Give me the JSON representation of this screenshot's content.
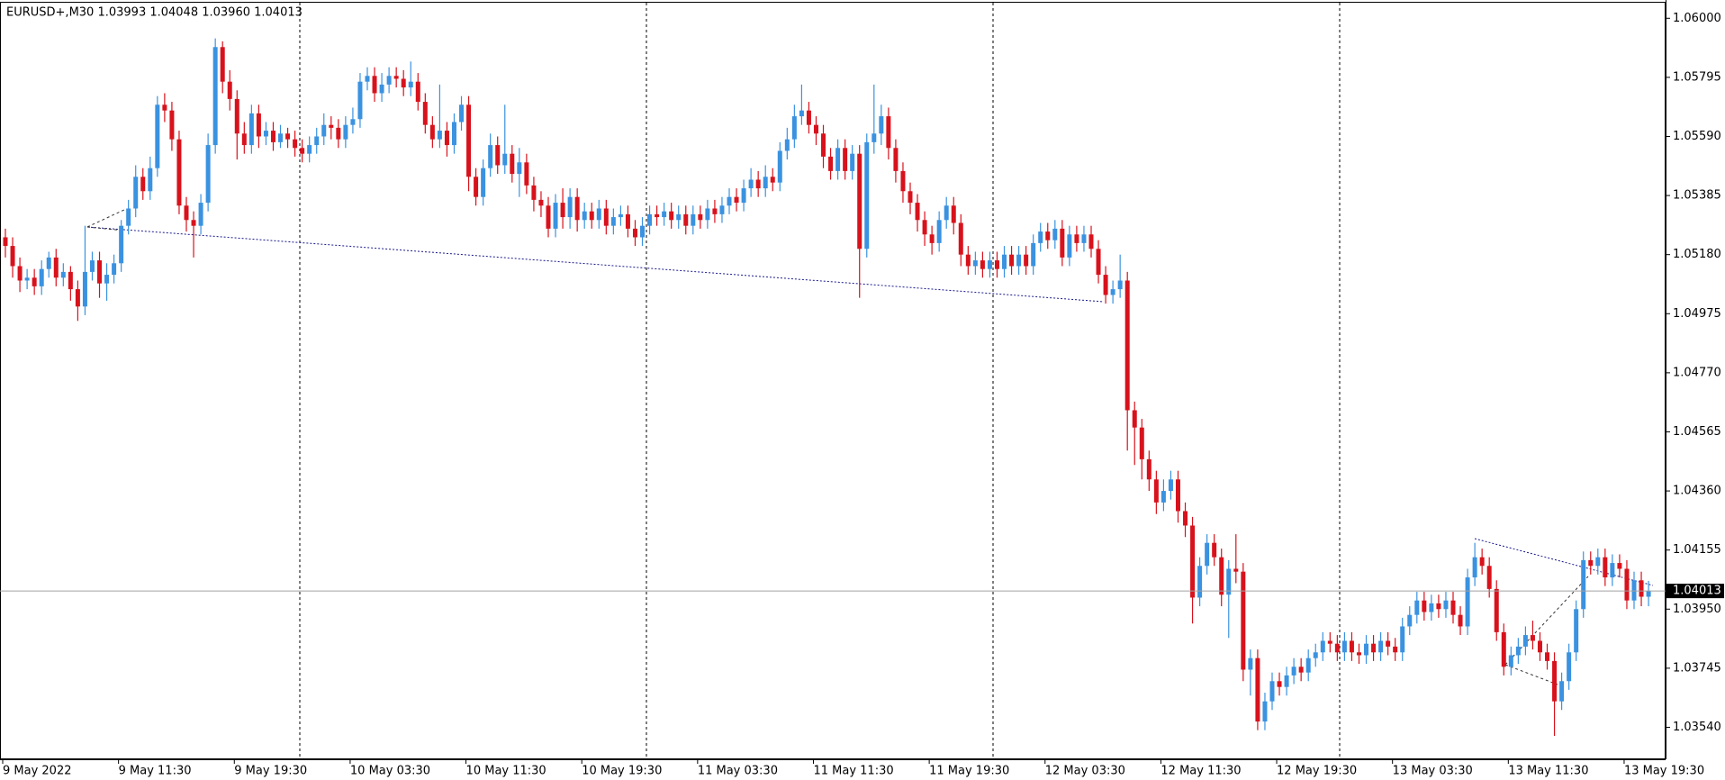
{
  "chart_data": {
    "type": "candlestick",
    "title": "EURUSD+,M30  1.03993 1.04048 1.03960 1.04013",
    "colors": {
      "up": "#3a92e0",
      "down": "#d8121c"
    },
    "ylim": [
      1.03429,
      1.06054
    ],
    "yticks": [
      {
        "value": 1.06,
        "label": "1.06000"
      },
      1.05795,
      {
        "value": 1.0559,
        "label": "1.05590"
      },
      1.05385,
      {
        "value": 1.0518,
        "label": "1.05180"
      },
      1.04975,
      {
        "value": 1.0477,
        "label": "1.04770"
      },
      1.04565,
      {
        "value": 1.0436,
        "label": "1.04360"
      },
      1.04155,
      {
        "value": 1.0395,
        "label": "1.03950"
      },
      1.03745,
      {
        "value": 1.0354,
        "label": "1.03540"
      }
    ],
    "categories": [
      "9 May 2022",
      null,
      null,
      null,
      null,
      null,
      null,
      null,
      null,
      null,
      null,
      null,
      null,
      null,
      null,
      null,
      "9 May 11:30",
      null,
      null,
      null,
      null,
      null,
      null,
      null,
      null,
      null,
      null,
      null,
      null,
      null,
      null,
      null,
      "9 May 19:30",
      null,
      null,
      null,
      null,
      null,
      null,
      null,
      null,
      null,
      null,
      null,
      null,
      null,
      null,
      null,
      "10 May 03:30",
      null,
      null,
      null,
      null,
      null,
      null,
      null,
      null,
      null,
      null,
      null,
      null,
      null,
      null,
      null,
      "10 May 11:30",
      null,
      null,
      null,
      null,
      null,
      null,
      null,
      null,
      null,
      null,
      null,
      null,
      null,
      null,
      null,
      "10 May 19:30",
      null,
      null,
      null,
      null,
      null,
      null,
      null,
      null,
      null,
      null,
      null,
      null,
      null,
      null,
      null,
      "11 May 03:30",
      null,
      null,
      null,
      null,
      null,
      null,
      null,
      null,
      null,
      null,
      null,
      null,
      null,
      null,
      null,
      "11 May 11:30",
      null,
      null,
      null,
      null,
      null,
      null,
      null,
      null,
      null,
      null,
      null,
      null,
      null,
      null,
      null,
      "11 May 19:30",
      null,
      null,
      null,
      null,
      null,
      null,
      null,
      null,
      null,
      null,
      null,
      null,
      null,
      null,
      null,
      "12 May 03:30",
      null,
      null,
      null,
      null,
      null,
      null,
      null,
      null,
      null,
      null,
      null,
      null,
      null,
      null,
      null,
      "12 May 11:30",
      null,
      null,
      null,
      null,
      null,
      null,
      null,
      null,
      null,
      null,
      null,
      null,
      null,
      null,
      null,
      "12 May 19:30",
      null,
      null,
      null,
      null,
      null,
      null,
      null,
      null,
      null,
      null,
      null,
      null,
      null,
      null,
      null,
      "13 May 03:30",
      null,
      null,
      null,
      null,
      null,
      null,
      null,
      null,
      null,
      null,
      null,
      null,
      null,
      null,
      null,
      "13 May 11:30",
      null,
      null,
      null,
      null,
      null,
      null,
      null,
      null,
      null,
      null,
      null,
      null,
      null,
      null,
      null,
      "13 May 19:30",
      null,
      null,
      null
    ],
    "open": [
      1.0524,
      1.0521,
      1.0514,
      1.0509,
      1.051,
      1.0507,
      1.0513,
      1.0517,
      1.051,
      1.0512,
      1.0506,
      1.05,
      1.0512,
      1.0516,
      1.0508,
      1.0511,
      1.0515,
      1.0528,
      1.0534,
      1.0545,
      1.054,
      1.0548,
      1.057,
      1.0568,
      1.0558,
      1.0535,
      1.053,
      1.0528,
      1.0536,
      1.0556,
      1.059,
      1.0578,
      1.0572,
      1.056,
      1.0556,
      1.0567,
      1.0559,
      1.0561,
      1.0557,
      1.056,
      1.0558,
      1.0555,
      1.0553,
      1.0556,
      1.0559,
      1.0563,
      1.0562,
      1.0558,
      1.0563,
      1.0565,
      1.0578,
      1.058,
      1.0574,
      1.0577,
      1.058,
      1.0579,
      1.0576,
      1.0578,
      1.0571,
      1.0563,
      1.0558,
      1.0561,
      1.0556,
      1.0564,
      1.057,
      1.0545,
      1.0538,
      1.0548,
      1.0556,
      1.0549,
      1.0553,
      1.0546,
      1.055,
      1.0542,
      1.0537,
      1.0535,
      1.0527,
      1.0536,
      1.0531,
      1.0538,
      1.053,
      1.0533,
      1.053,
      1.0534,
      1.0528,
      1.0531,
      1.0532,
      1.0527,
      1.0524,
      1.0528,
      1.0532,
      1.0531,
      1.0533,
      1.053,
      1.0532,
      1.0528,
      1.0532,
      1.053,
      1.0534,
      1.0532,
      1.0535,
      1.0538,
      1.0536,
      1.0541,
      1.0544,
      1.0541,
      1.0545,
      1.0543,
      1.0554,
      1.0558,
      1.0566,
      1.0568,
      1.0563,
      1.056,
      1.0552,
      1.0547,
      1.0555,
      1.0547,
      1.0553,
      1.052,
      1.0557,
      1.056,
      1.0566,
      1.0555,
      1.0547,
      1.054,
      1.0536,
      1.053,
      1.0525,
      1.0522,
      1.053,
      1.0535,
      1.0529,
      1.0518,
      1.0514,
      1.0516,
      1.0513,
      1.0516,
      1.0513,
      1.0518,
      1.0514,
      1.0518,
      1.0514,
      1.0522,
      1.0526,
      1.0523,
      1.0527,
      1.0517,
      1.0525,
      1.0522,
      1.0525,
      1.052,
      1.0511,
      1.0504,
      1.0506,
      1.0509,
      1.0464,
      1.0458,
      1.0447,
      1.044,
      1.0432,
      1.0436,
      1.044,
      1.0429,
      1.0424,
      1.0399,
      1.041,
      1.0418,
      1.0413,
      1.04,
      1.0409,
      1.0408,
      1.0374,
      1.0378,
      1.0356,
      1.0363,
      1.037,
      1.0368,
      1.0372,
      1.0375,
      1.0373,
      1.0378,
      1.038,
      1.0384,
      1.0383,
      1.038,
      1.0384,
      1.038,
      1.0379,
      1.0383,
      1.038,
      1.0384,
      1.0382,
      1.038,
      1.0389,
      1.0393,
      1.0398,
      1.0394,
      1.0397,
      1.0395,
      1.0398,
      1.0393,
      1.0389,
      1.0406,
      1.0413,
      1.041,
      1.0402,
      1.0387,
      1.0375,
      1.0379,
      1.0382,
      1.0386,
      1.0384,
      1.038,
      1.0377,
      1.0363,
      1.037,
      1.038,
      1.0395,
      1.0412,
      1.041,
      1.0413,
      1.0406,
      1.0411,
      1.0409,
      1.0398,
      1.0405,
      1.03993
    ],
    "high": [
      1.0527,
      1.0524,
      1.0517,
      1.0513,
      1.0513,
      1.0516,
      1.0519,
      1.052,
      1.0515,
      1.0514,
      1.0509,
      1.0528,
      1.0519,
      1.0519,
      1.0515,
      1.0518,
      1.053,
      1.0537,
      1.0549,
      1.0548,
      1.0552,
      1.0573,
      1.0574,
      1.0571,
      1.0561,
      1.0538,
      1.0533,
      1.0539,
      1.056,
      1.0593,
      1.0592,
      1.0582,
      1.0575,
      1.0564,
      1.057,
      1.057,
      1.0564,
      1.0564,
      1.0563,
      1.0562,
      1.0561,
      1.0558,
      1.0559,
      1.0562,
      1.0567,
      1.0566,
      1.0565,
      1.0566,
      1.0569,
      1.0581,
      1.0583,
      1.0583,
      1.0581,
      1.0583,
      1.0583,
      1.0582,
      1.0585,
      1.0581,
      1.0574,
      1.0566,
      1.0577,
      1.0564,
      1.0567,
      1.0573,
      1.0573,
      1.0548,
      1.0551,
      1.056,
      1.0559,
      1.057,
      1.0556,
      1.0555,
      1.0553,
      1.0545,
      1.054,
      1.0538,
      1.0539,
      1.0541,
      1.0541,
      1.0541,
      1.0536,
      1.0536,
      1.0537,
      1.0537,
      1.0534,
      1.0535,
      1.0535,
      1.053,
      1.0531,
      1.0535,
      1.0535,
      1.0536,
      1.0536,
      1.0535,
      1.0535,
      1.0535,
      1.0535,
      1.0537,
      1.0537,
      1.0538,
      1.0541,
      1.0541,
      1.0544,
      1.0548,
      1.0547,
      1.0549,
      1.0548,
      1.0557,
      1.0562,
      1.057,
      1.0577,
      1.0571,
      1.0566,
      1.0563,
      1.0555,
      1.0558,
      1.0558,
      1.0556,
      1.0556,
      1.056,
      1.0577,
      1.057,
      1.0569,
      1.0558,
      1.055,
      1.0543,
      1.0539,
      1.0533,
      1.0528,
      1.0533,
      1.0538,
      1.0538,
      1.0532,
      1.0521,
      1.0519,
      1.0519,
      1.0519,
      1.0519,
      1.0521,
      1.0521,
      1.0521,
      1.0521,
      1.0525,
      1.0529,
      1.0529,
      1.053,
      1.053,
      1.0528,
      1.0528,
      1.0528,
      1.0528,
      1.0523,
      1.0514,
      1.0509,
      1.0518,
      1.0512,
      1.0467,
      1.0461,
      1.045,
      1.0443,
      1.044,
      1.0443,
      1.0443,
      1.0432,
      1.0427,
      1.0413,
      1.0421,
      1.0421,
      1.0416,
      1.0412,
      1.0421,
      1.0411,
      1.0381,
      1.0381,
      1.0366,
      1.0373,
      1.0373,
      1.0375,
      1.0378,
      1.0378,
      1.0381,
      1.0383,
      1.0387,
      1.0387,
      1.0386,
      1.0387,
      1.0387,
      1.0383,
      1.0386,
      1.0386,
      1.0387,
      1.0387,
      1.0385,
      1.0392,
      1.0396,
      1.0401,
      1.0401,
      1.04,
      1.04,
      1.0401,
      1.0401,
      1.0396,
      1.0409,
      1.0418,
      1.0416,
      1.0413,
      1.0405,
      1.039,
      1.0382,
      1.0385,
      1.0389,
      1.0391,
      1.0387,
      1.0383,
      1.038,
      1.0373,
      1.0383,
      1.0398,
      1.0415,
      1.0415,
      1.0416,
      1.0416,
      1.0414,
      1.0414,
      1.0412,
      1.0408,
      1.0408,
      1.04048
    ],
    "low": [
      1.0517,
      1.051,
      1.0505,
      1.0506,
      1.0504,
      1.0504,
      1.051,
      1.0507,
      1.0507,
      1.0502,
      1.0495,
      1.0497,
      1.0509,
      1.0503,
      1.0502,
      1.0508,
      1.0512,
      1.0525,
      1.0531,
      1.0537,
      1.0537,
      1.0545,
      1.0564,
      1.0554,
      1.0532,
      1.0526,
      1.0517,
      1.0525,
      1.0533,
      1.0553,
      1.0574,
      1.0568,
      1.0551,
      1.0553,
      1.0553,
      1.0555,
      1.0556,
      1.0554,
      1.0555,
      1.0555,
      1.0552,
      1.055,
      1.055,
      1.0553,
      1.0556,
      1.0558,
      1.0555,
      1.0555,
      1.056,
      1.0562,
      1.0575,
      1.0571,
      1.0571,
      1.0574,
      1.0576,
      1.0573,
      1.0573,
      1.0568,
      1.056,
      1.0555,
      1.0555,
      1.0552,
      1.0553,
      1.0561,
      1.054,
      1.0535,
      1.0535,
      1.0545,
      1.0546,
      1.0546,
      1.0543,
      1.0538,
      1.0539,
      1.0533,
      1.0531,
      1.0524,
      1.0524,
      1.0527,
      1.0527,
      1.0526,
      1.0527,
      1.0527,
      1.0527,
      1.0525,
      1.0525,
      1.0528,
      1.0524,
      1.0521,
      1.0521,
      1.0525,
      1.0528,
      1.0528,
      1.0527,
      1.0527,
      1.0525,
      1.0525,
      1.0527,
      1.0527,
      1.0529,
      1.0529,
      1.0532,
      1.0533,
      1.0533,
      1.0538,
      1.0538,
      1.0538,
      1.054,
      1.054,
      1.0551,
      1.0555,
      1.0563,
      1.056,
      1.0556,
      1.0548,
      1.0544,
      1.0544,
      1.0544,
      1.0544,
      1.0503,
      1.0517,
      1.0553,
      1.0556,
      1.0551,
      1.0543,
      1.0536,
      1.0532,
      1.0526,
      1.0521,
      1.0518,
      1.0519,
      1.0527,
      1.0525,
      1.0514,
      1.0511,
      1.0511,
      1.051,
      1.051,
      1.051,
      1.051,
      1.0511,
      1.0511,
      1.0511,
      1.0511,
      1.0519,
      1.052,
      1.052,
      1.0514,
      1.0514,
      1.0519,
      1.0519,
      1.0517,
      1.0508,
      1.0501,
      1.0501,
      1.0503,
      1.045,
      1.0445,
      1.044,
      1.0436,
      1.0428,
      1.0429,
      1.0433,
      1.0425,
      1.042,
      1.039,
      1.0396,
      1.0407,
      1.041,
      1.0396,
      1.0385,
      1.0404,
      1.037,
      1.0365,
      1.0353,
      1.0353,
      1.036,
      1.0365,
      1.0365,
      1.0369,
      1.037,
      1.037,
      1.0375,
      1.0377,
      1.038,
      1.0377,
      1.0377,
      1.0377,
      1.0376,
      1.0376,
      1.0377,
      1.0377,
      1.0379,
      1.0377,
      1.0377,
      1.0386,
      1.039,
      1.0391,
      1.0391,
      1.0392,
      1.0392,
      1.039,
      1.0386,
      1.0386,
      1.0403,
      1.0407,
      1.0399,
      1.0384,
      1.0372,
      1.0372,
      1.0376,
      1.0379,
      1.0381,
      1.0377,
      1.0374,
      1.0351,
      1.036,
      1.0367,
      1.0377,
      1.0392,
      1.0407,
      1.0407,
      1.0403,
      1.0403,
      1.0406,
      1.0395,
      1.0395,
      1.0396,
      1.0396
    ],
    "close": [
      1.0521,
      1.0514,
      1.0509,
      1.051,
      1.0507,
      1.0513,
      1.0517,
      1.051,
      1.0512,
      1.0506,
      1.05,
      1.0512,
      1.0516,
      1.0508,
      1.0511,
      1.0515,
      1.0528,
      1.0534,
      1.0545,
      1.054,
      1.0548,
      1.057,
      1.0568,
      1.0558,
      1.0535,
      1.053,
      1.0528,
      1.0536,
      1.0556,
      1.059,
      1.0578,
      1.0572,
      1.056,
      1.0556,
      1.0567,
      1.0559,
      1.0561,
      1.0557,
      1.056,
      1.0558,
      1.0555,
      1.0553,
      1.0556,
      1.0559,
      1.0563,
      1.0562,
      1.0558,
      1.0563,
      1.0565,
      1.0578,
      1.058,
      1.0574,
      1.0577,
      1.058,
      1.0579,
      1.0576,
      1.0578,
      1.0571,
      1.0563,
      1.0558,
      1.0561,
      1.0556,
      1.0564,
      1.057,
      1.0545,
      1.0538,
      1.0548,
      1.0556,
      1.0549,
      1.0553,
      1.0546,
      1.055,
      1.0542,
      1.0537,
      1.0535,
      1.0527,
      1.0536,
      1.0531,
      1.0538,
      1.053,
      1.0533,
      1.053,
      1.0534,
      1.0528,
      1.0531,
      1.0532,
      1.0527,
      1.0524,
      1.0528,
      1.0532,
      1.0531,
      1.0533,
      1.053,
      1.0532,
      1.0528,
      1.0532,
      1.053,
      1.0534,
      1.0532,
      1.0535,
      1.0538,
      1.0536,
      1.0541,
      1.0544,
      1.0541,
      1.0545,
      1.0543,
      1.0554,
      1.0558,
      1.0566,
      1.0568,
      1.0563,
      1.056,
      1.0552,
      1.0547,
      1.0555,
      1.0547,
      1.0553,
      1.052,
      1.0557,
      1.056,
      1.0566,
      1.0555,
      1.0547,
      1.054,
      1.0536,
      1.053,
      1.0525,
      1.0522,
      1.053,
      1.0535,
      1.0529,
      1.0518,
      1.0514,
      1.0516,
      1.0513,
      1.0516,
      1.0513,
      1.0518,
      1.0514,
      1.0518,
      1.0514,
      1.0522,
      1.0526,
      1.0523,
      1.0527,
      1.0517,
      1.0525,
      1.0522,
      1.0525,
      1.052,
      1.0511,
      1.0504,
      1.0506,
      1.0509,
      1.0464,
      1.0458,
      1.0447,
      1.044,
      1.0432,
      1.0436,
      1.044,
      1.0429,
      1.0424,
      1.0399,
      1.041,
      1.0418,
      1.0413,
      1.04,
      1.0409,
      1.0408,
      1.0374,
      1.0378,
      1.0356,
      1.0363,
      1.037,
      1.0368,
      1.0372,
      1.0375,
      1.0373,
      1.0378,
      1.038,
      1.0384,
      1.0383,
      1.038,
      1.0384,
      1.038,
      1.0379,
      1.0383,
      1.038,
      1.0384,
      1.0382,
      1.038,
      1.0389,
      1.0393,
      1.0398,
      1.0394,
      1.0397,
      1.0395,
      1.0398,
      1.0393,
      1.0389,
      1.0406,
      1.0413,
      1.041,
      1.0402,
      1.0387,
      1.0375,
      1.0379,
      1.0382,
      1.0386,
      1.0384,
      1.038,
      1.0377,
      1.0363,
      1.037,
      1.038,
      1.0395,
      1.0412,
      1.041,
      1.0413,
      1.0406,
      1.0411,
      1.0409,
      1.0398,
      1.0405,
      1.03993,
      1.04013
    ]
  }
}
